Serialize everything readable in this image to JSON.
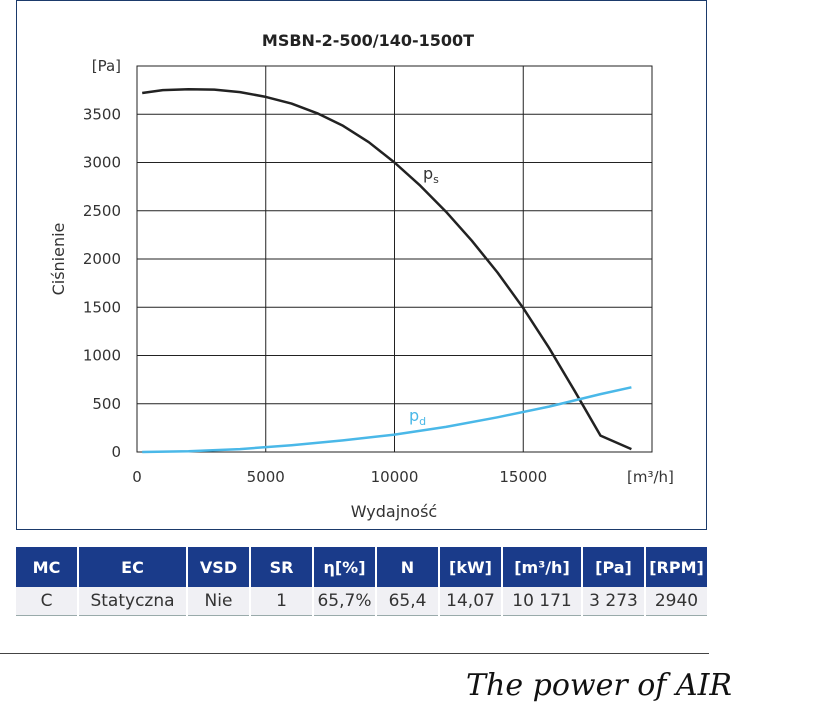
{
  "chart_data": {
    "type": "line",
    "title": "MSBN-2-500/140-1500T",
    "xlabel": "Wydajność",
    "ylabel": "Ciśnienie",
    "x_unit_label": "[m³/h]",
    "y_unit_label": "[Pa]",
    "xlim": [
      0,
      20000
    ],
    "ylim": [
      0,
      4000
    ],
    "x_ticks": [
      "0",
      "5000",
      "10000",
      "15000"
    ],
    "y_ticks": [
      "0",
      "500",
      "1000",
      "1500",
      "2000",
      "2500",
      "3000",
      "3500"
    ],
    "grid": true,
    "series": [
      {
        "name": "ps",
        "label_main": "p",
        "label_sub": "s",
        "color": "#222222",
        "x": [
          200,
          1000,
          2000,
          3000,
          4000,
          5000,
          6000,
          7000,
          8000,
          9000,
          10000,
          11000,
          12000,
          13000,
          14000,
          15000,
          16000,
          17000,
          18000,
          19200
        ],
        "y": [
          3720,
          3750,
          3760,
          3755,
          3730,
          3680,
          3610,
          3510,
          3380,
          3210,
          3000,
          2760,
          2490,
          2190,
          1860,
          1490,
          1080,
          630,
          170,
          30
        ]
      },
      {
        "name": "pd",
        "label_main": "p",
        "label_sub": "d",
        "color": "#4ab8e8",
        "x": [
          200,
          2000,
          4000,
          6000,
          8000,
          10000,
          12000,
          14000,
          16000,
          18000,
          19200
        ],
        "y": [
          0,
          8,
          30,
          70,
          120,
          180,
          260,
          360,
          470,
          600,
          670
        ]
      }
    ]
  },
  "table": {
    "headers": [
      "MC",
      "EC",
      "VSD",
      "SR",
      "η[%]",
      "N",
      "[kW]",
      "[m³/h]",
      "[Pa]",
      "[RPM]"
    ],
    "rows": [
      [
        "C",
        "Statyczna",
        "Nie",
        "1",
        "65,7%",
        "65,4",
        "14,07",
        "10 171",
        "3 273",
        "2940"
      ]
    ]
  },
  "footer": {
    "tagline": "The power of AIR"
  }
}
